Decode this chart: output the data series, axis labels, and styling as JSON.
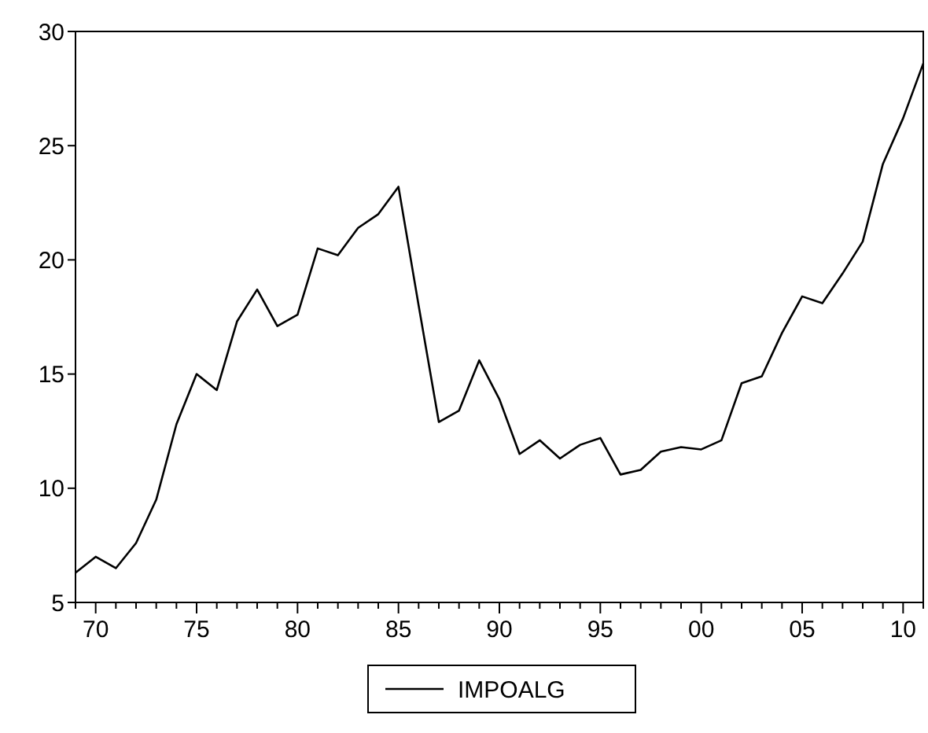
{
  "chart_data": {
    "type": "line",
    "x": [
      1969,
      1970,
      1971,
      1972,
      1973,
      1974,
      1975,
      1976,
      1977,
      1978,
      1979,
      1980,
      1981,
      1982,
      1983,
      1984,
      1985,
      1986,
      1987,
      1988,
      1989,
      1990,
      1991,
      1992,
      1993,
      1994,
      1995,
      1996,
      1997,
      1998,
      1999,
      2000,
      2001,
      2002,
      2003,
      2004,
      2005,
      2006,
      2007,
      2008,
      2009,
      2010,
      2011
    ],
    "series": [
      {
        "name": "IMPOALG",
        "color": "#000000",
        "values": [
          6.3,
          7.0,
          6.5,
          7.6,
          9.5,
          12.8,
          15.0,
          14.3,
          17.3,
          18.7,
          17.1,
          17.6,
          20.5,
          20.2,
          21.4,
          22.0,
          23.2,
          18.0,
          12.9,
          13.4,
          15.6,
          13.9,
          11.5,
          12.1,
          11.3,
          11.9,
          12.2,
          10.6,
          10.8,
          11.6,
          11.8,
          11.7,
          12.1,
          14.6,
          14.9,
          16.8,
          18.4,
          18.1,
          19.4,
          20.8,
          24.2,
          26.2,
          28.6
        ]
      }
    ],
    "xlim": [
      1969,
      2011
    ],
    "xticks": [
      {
        "value": 1969,
        "label": null
      },
      {
        "value": 1970,
        "label": "70"
      },
      {
        "value": 1971,
        "label": null
      },
      {
        "value": 1972,
        "label": null
      },
      {
        "value": 1973,
        "label": null
      },
      {
        "value": 1974,
        "label": null
      },
      {
        "value": 1975,
        "label": "75"
      },
      {
        "value": 1976,
        "label": null
      },
      {
        "value": 1977,
        "label": null
      },
      {
        "value": 1978,
        "label": null
      },
      {
        "value": 1979,
        "label": null
      },
      {
        "value": 1980,
        "label": "80"
      },
      {
        "value": 1981,
        "label": null
      },
      {
        "value": 1982,
        "label": null
      },
      {
        "value": 1983,
        "label": null
      },
      {
        "value": 1984,
        "label": null
      },
      {
        "value": 1985,
        "label": "85"
      },
      {
        "value": 1986,
        "label": null
      },
      {
        "value": 1987,
        "label": null
      },
      {
        "value": 1988,
        "label": null
      },
      {
        "value": 1989,
        "label": null
      },
      {
        "value": 1990,
        "label": "90"
      },
      {
        "value": 1991,
        "label": null
      },
      {
        "value": 1992,
        "label": null
      },
      {
        "value": 1993,
        "label": null
      },
      {
        "value": 1994,
        "label": null
      },
      {
        "value": 1995,
        "label": "95"
      },
      {
        "value": 1996,
        "label": null
      },
      {
        "value": 1997,
        "label": null
      },
      {
        "value": 1998,
        "label": null
      },
      {
        "value": 1999,
        "label": null
      },
      {
        "value": 2000,
        "label": "00"
      },
      {
        "value": 2001,
        "label": null
      },
      {
        "value": 2002,
        "label": null
      },
      {
        "value": 2003,
        "label": null
      },
      {
        "value": 2004,
        "label": null
      },
      {
        "value": 2005,
        "label": "05"
      },
      {
        "value": 2006,
        "label": null
      },
      {
        "value": 2007,
        "label": null
      },
      {
        "value": 2008,
        "label": null
      },
      {
        "value": 2009,
        "label": null
      },
      {
        "value": 2010,
        "label": "10"
      },
      {
        "value": 2011,
        "label": null
      }
    ],
    "ylim": [
      5,
      30
    ],
    "yticks": [
      5,
      10,
      15,
      20,
      25,
      30
    ],
    "grid": false,
    "legend": "bottom",
    "marker": "none",
    "line_style": "solid"
  }
}
